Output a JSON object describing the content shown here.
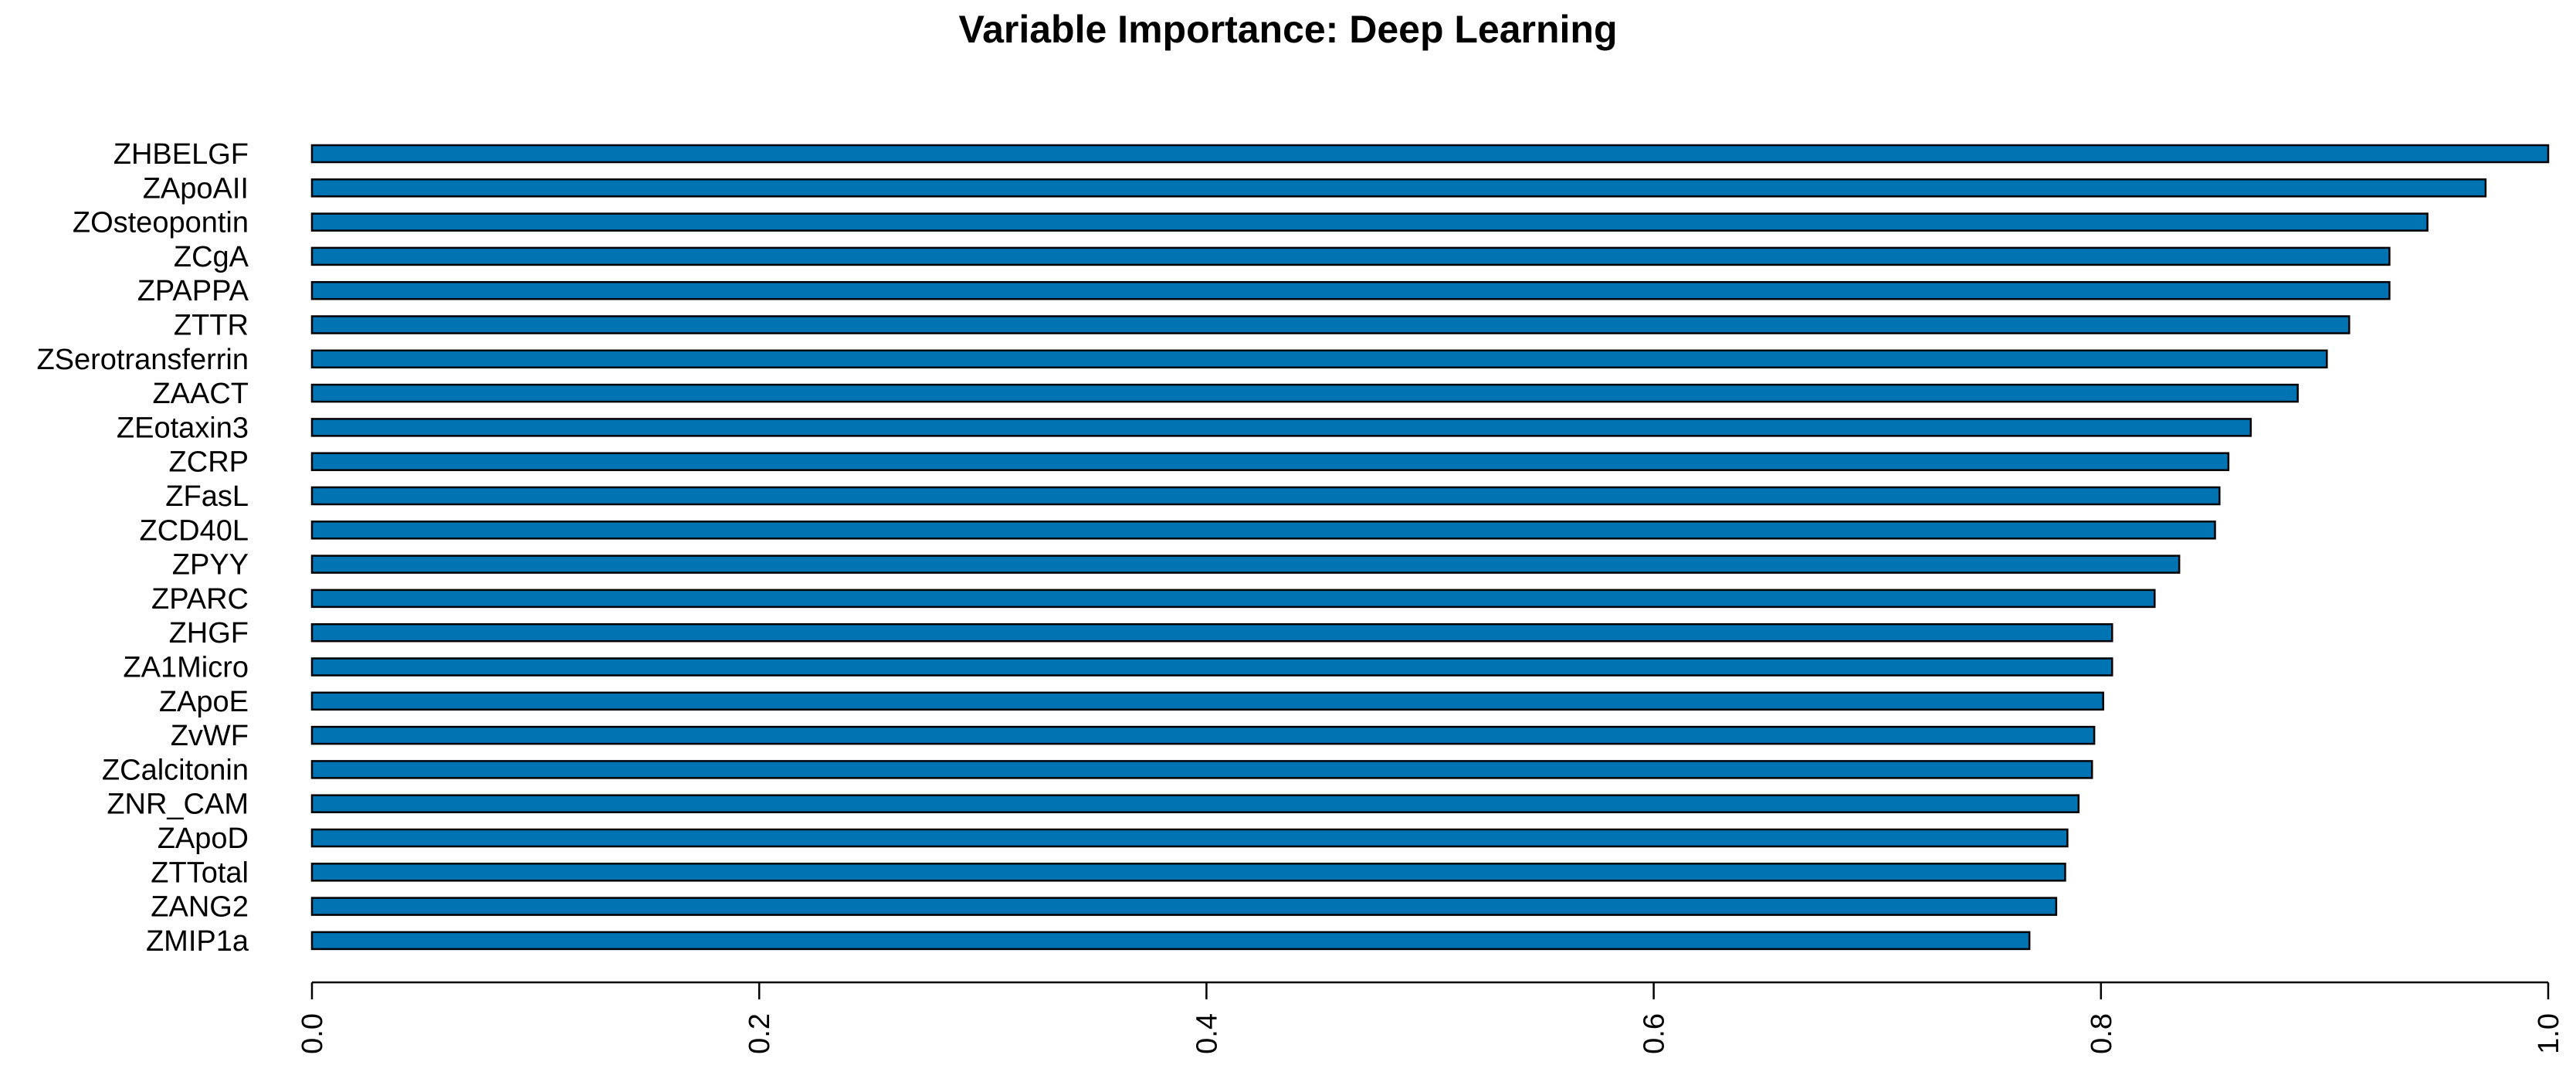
{
  "chart_data": {
    "type": "bar",
    "orientation": "horizontal",
    "title": "Variable Importance: Deep Learning",
    "xlabel": "",
    "ylabel": "",
    "xlim": [
      0,
      1.0
    ],
    "x_ticks": [
      "0.0",
      "0.2",
      "0.4",
      "0.6",
      "0.8",
      "1.0"
    ],
    "x_tick_values": [
      0.0,
      0.2,
      0.4,
      0.6,
      0.8,
      1.0
    ],
    "grid": false,
    "legend": "none",
    "bar_color": "#0073b3",
    "categories": [
      "ZHBELGF",
      "ZApoAII",
      "ZOsteopontin",
      "ZCgA",
      "ZPAPPA",
      "ZTTR",
      "ZSerotransferrin",
      "ZAACT",
      "ZEotaxin3",
      "ZCRP",
      "ZFasL",
      "ZCD40L",
      "ZPYY",
      "ZPARC",
      "ZHGF",
      "ZA1Micro",
      "ZApoE",
      "ZvWF",
      "ZCalcitonin",
      "ZNR_CAM",
      "ZApoD",
      "ZTTotal",
      "ZANG2",
      "ZMIP1a"
    ],
    "values": [
      1.0,
      0.972,
      0.946,
      0.929,
      0.929,
      0.911,
      0.901,
      0.888,
      0.867,
      0.857,
      0.853,
      0.851,
      0.835,
      0.824,
      0.805,
      0.805,
      0.801,
      0.797,
      0.796,
      0.79,
      0.785,
      0.784,
      0.78,
      0.768
    ]
  }
}
